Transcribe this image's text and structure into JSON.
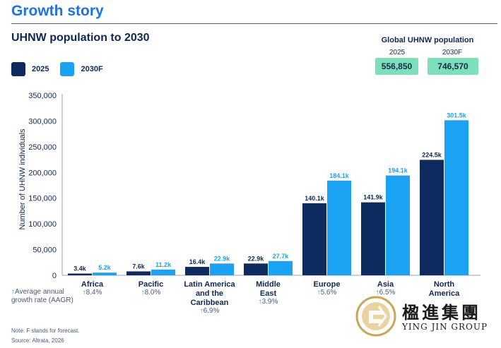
{
  "header": {
    "title": "Growth story"
  },
  "global": {
    "title": "Global UHNW population",
    "items": [
      {
        "year": "2025",
        "value": "556,850"
      },
      {
        "year": "2030F",
        "value": "746,570"
      }
    ]
  },
  "aagr_note": "Average annual growth rate (AAGR)",
  "footnotes": [
    "Note: F stands for forecast.",
    "Source: Altrata, 2026"
  ],
  "brand": {
    "cn": "楹進集團",
    "en": "YING JIN GROUP"
  },
  "colors": {
    "y2025": "#0d2b5e",
    "y2030": "#1aa3f2",
    "growth_arrow": "#27a86a",
    "global_box": "#7ee0b8"
  },
  "chart_data": {
    "type": "bar",
    "title": "UHNW population to 2030",
    "ylabel": "Number of UHNW individuals",
    "ylim": [
      0,
      350000
    ],
    "yticks": [
      0,
      50000,
      100000,
      150000,
      200000,
      250000,
      300000,
      350000
    ],
    "ytick_labels": [
      "0",
      "50,000",
      "100,000",
      "150,000",
      "200,000",
      "250,000",
      "300,000",
      "350,000"
    ],
    "grid": false,
    "legend": "top-left",
    "categories": [
      {
        "lines": [
          "Africa"
        ],
        "growth": "8.4%"
      },
      {
        "lines": [
          "Pacific"
        ],
        "growth": "8.0%"
      },
      {
        "lines": [
          "Latin America",
          "and the",
          "Caribbean"
        ],
        "growth": "6.9%"
      },
      {
        "lines": [
          "Middle",
          "East"
        ],
        "growth": "3.9%"
      },
      {
        "lines": [
          "Europe"
        ],
        "growth": "5.6%"
      },
      {
        "lines": [
          "Asia"
        ],
        "growth": "6.5%"
      },
      {
        "lines": [
          "North",
          "America"
        ],
        "growth": ""
      }
    ],
    "series": [
      {
        "name": "2025",
        "values": [
          3400,
          7600,
          16400,
          22900,
          140100,
          141900,
          224500
        ],
        "labels": [
          "3.4k",
          "7.6k",
          "16.4k",
          "22.9k",
          "140.1k",
          "141.9k",
          "224.5k"
        ]
      },
      {
        "name": "2030F",
        "values": [
          5200,
          11200,
          22900,
          27700,
          184100,
          194100,
          301500
        ],
        "labels": [
          "5.2k",
          "11.2k",
          "22.9k",
          "27.7k",
          "184.1k",
          "194.1k",
          "301.5k"
        ]
      }
    ]
  }
}
